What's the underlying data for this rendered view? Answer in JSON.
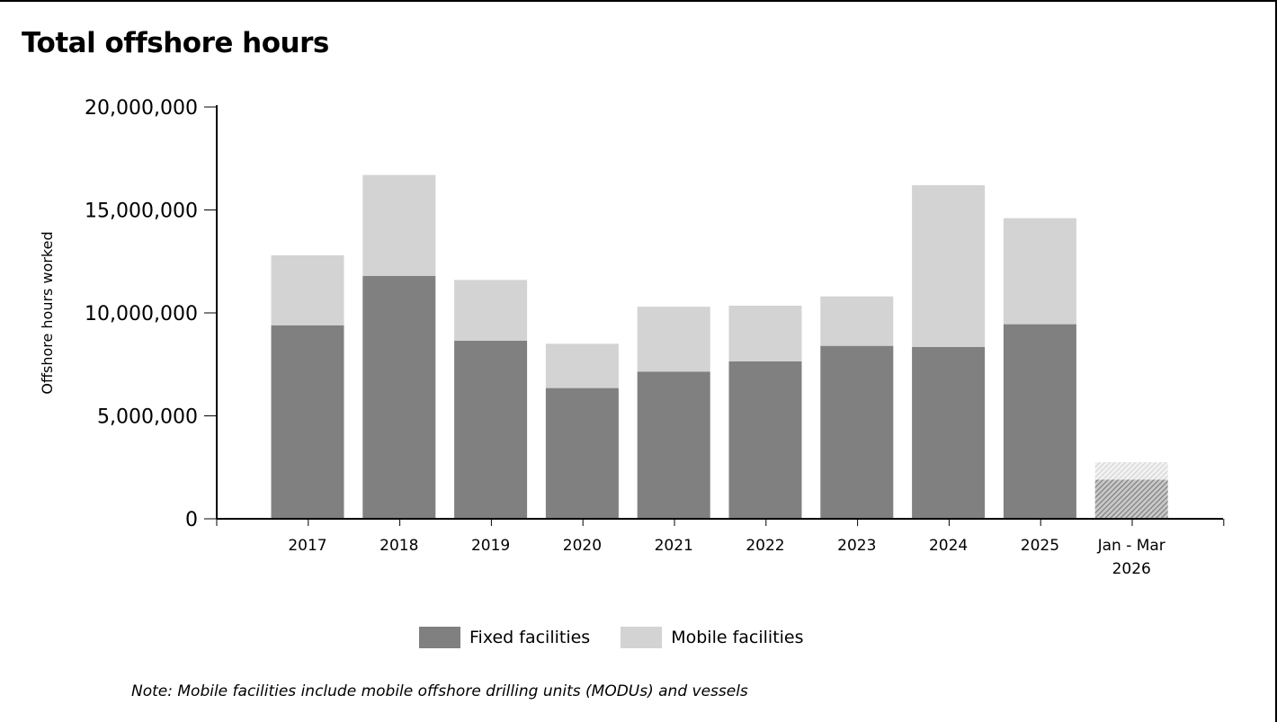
{
  "page": {
    "title": "Total offshore hours",
    "note": "Note: Mobile facilities include mobile offshore drilling units (MODUs) and vessels"
  },
  "colors": {
    "fixed": "#808080",
    "mobile": "#d3d3d3",
    "axis": "#000000"
  },
  "chart_data": {
    "type": "bar",
    "stacked": true,
    "title": "Total offshore hours",
    "xlabel": "",
    "ylabel": "Offshore hours worked",
    "ylim": [
      0,
      20000000
    ],
    "yticks": [
      0,
      5000000,
      10000000,
      15000000,
      20000000
    ],
    "ytick_labels": [
      "0",
      "5,000,000",
      "10,000,000",
      "15,000,000",
      "20,000,000"
    ],
    "categories": [
      "2017",
      "2018",
      "2019",
      "2020",
      "2021",
      "2022",
      "2023",
      "2024",
      "2025",
      "Jan - Mar 2026"
    ],
    "category_label_lines": [
      [
        "2017"
      ],
      [
        "2018"
      ],
      [
        "2019"
      ],
      [
        "2020"
      ],
      [
        "2021"
      ],
      [
        "2022"
      ],
      [
        "2023"
      ],
      [
        "2024"
      ],
      [
        "2025"
      ],
      [
        "Jan - Mar",
        "2026"
      ]
    ],
    "series": [
      {
        "name": "Fixed facilities",
        "values": [
          9400000,
          11800000,
          8650000,
          6350000,
          7150000,
          7650000,
          8400000,
          8350000,
          9450000,
          1900000
        ]
      },
      {
        "name": "Mobile facilities",
        "values": [
          3400000,
          4900000,
          2950000,
          2150000,
          3150000,
          2700000,
          2400000,
          7850000,
          5150000,
          850000
        ]
      }
    ],
    "hatched_categories": [
      "Jan - Mar 2026"
    ],
    "grid": false,
    "legend_position": "bottom"
  }
}
